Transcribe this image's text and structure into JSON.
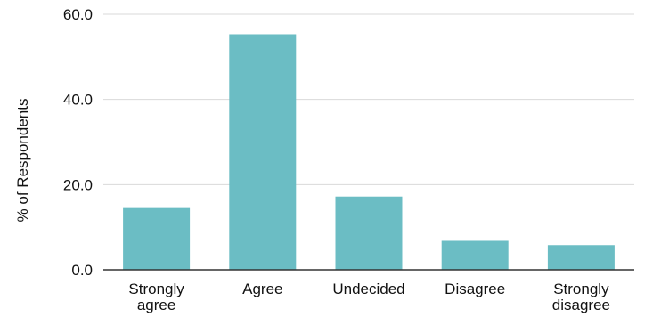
{
  "chart_data": {
    "type": "bar",
    "title": "",
    "xlabel": "",
    "ylabel": "% of Respondents",
    "categories": [
      [
        "Strongly",
        "agree"
      ],
      [
        "Agree"
      ],
      [
        "Undecided"
      ],
      [
        "Disagree"
      ],
      [
        "Strongly",
        "disagree"
      ]
    ],
    "values": [
      14.5,
      55.3,
      17.2,
      6.8,
      5.8
    ],
    "ylim": [
      0,
      60
    ],
    "yticks": [
      "0.0",
      "20.0",
      "40.0",
      "60.0"
    ],
    "ytick_values": [
      0,
      20,
      40,
      60
    ],
    "grid": true,
    "legend": "none",
    "colors": {
      "bar": "#6bbdc4",
      "grid": "#d9d9d9",
      "axis": "#333333",
      "text": "#111111"
    }
  }
}
